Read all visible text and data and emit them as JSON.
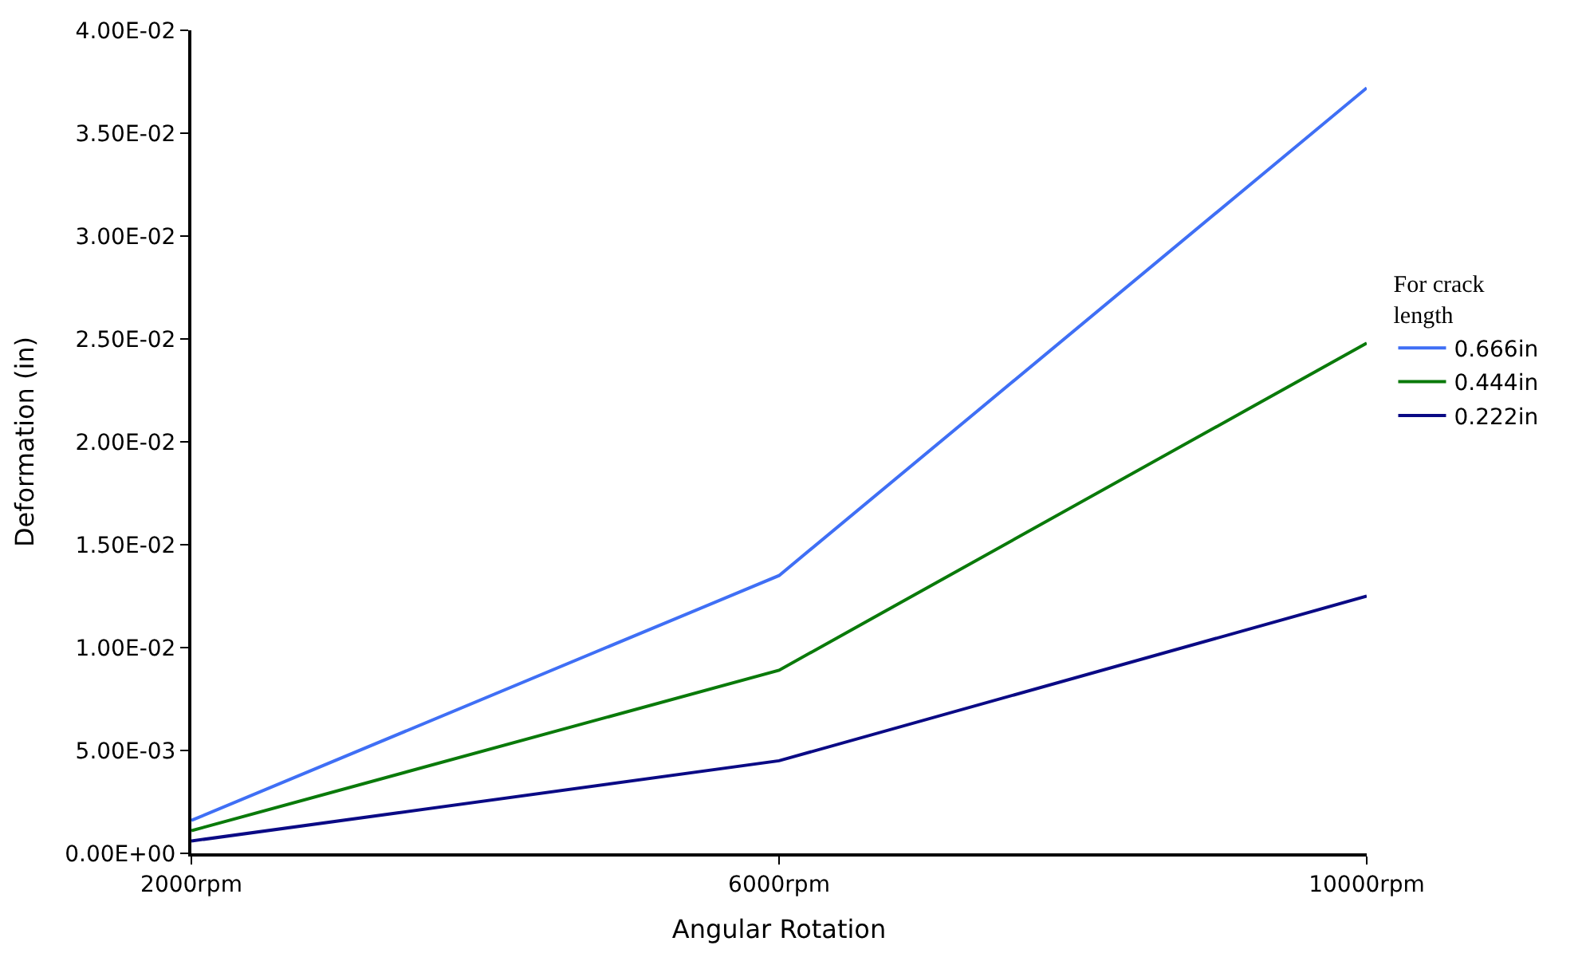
{
  "chart_data": {
    "type": "line",
    "xlabel": "Angular Rotation",
    "ylabel": "Deformation (in)",
    "legend_title": "For crack\nlength",
    "categories": [
      "2000rpm",
      "6000rpm",
      "10000rpm"
    ],
    "series": [
      {
        "name": "0.666in",
        "color": "#3f6ff5",
        "values": [
          0.0016,
          0.0135,
          0.0372
        ]
      },
      {
        "name": "0.444in",
        "color": "#0a7a0a",
        "values": [
          0.0011,
          0.0089,
          0.0248
        ]
      },
      {
        "name": "0.222in",
        "color": "#0a0a85",
        "values": [
          0.0006,
          0.0045,
          0.0125
        ]
      }
    ],
    "ylim": [
      0,
      0.04
    ],
    "yticks": [
      {
        "value": 0,
        "label": "0.00E+00"
      },
      {
        "value": 0.005,
        "label": "5.00E-03"
      },
      {
        "value": 0.01,
        "label": "1.00E-02"
      },
      {
        "value": 0.015,
        "label": "1.50E-02"
      },
      {
        "value": 0.02,
        "label": "2.00E-02"
      },
      {
        "value": 0.025,
        "label": "2.50E-02"
      },
      {
        "value": 0.03,
        "label": "3.00E-02"
      },
      {
        "value": 0.035,
        "label": "3.50E-02"
      },
      {
        "value": 0.04,
        "label": "4.00E-02"
      }
    ],
    "legend": "right",
    "marker": "none",
    "line_style": "solid"
  }
}
